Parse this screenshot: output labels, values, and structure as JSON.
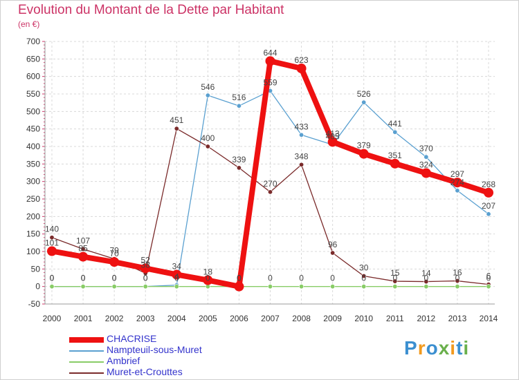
{
  "header": {
    "title": "Evolution du Montant de la Dette par Habitant",
    "subtitle": "(en €)"
  },
  "logo": {
    "text": "Proxiti",
    "letter_colors": [
      "#3b8fd0",
      "#f29a1f",
      "#3b8fd0",
      "#6ab04c",
      "#f29a1f",
      "#3b8fd0",
      "#6ab04c"
    ]
  },
  "chart_data": {
    "type": "line",
    "title": "Evolution du Montant de la Dette par Habitant",
    "subtitle": "(en €)",
    "x": [
      "2000",
      "2001",
      "2002",
      "2003",
      "2004",
      "2005",
      "2006",
      "2007",
      "2008",
      "2009",
      "2010",
      "2011",
      "2012",
      "2013",
      "2014"
    ],
    "ylim": [
      -50,
      700
    ],
    "yticks": [
      -50,
      0,
      50,
      100,
      150,
      200,
      250,
      300,
      350,
      400,
      450,
      500,
      550,
      600,
      650,
      700
    ],
    "grid": true,
    "legend": "bottom-left",
    "series": [
      {
        "name": "CHACRISE",
        "color": "#ee1111",
        "style": "thick",
        "values": [
          101,
          85,
          70,
          52,
          34,
          18,
          0,
          644,
          623,
          413,
          379,
          351,
          324,
          297,
          268
        ],
        "labels": [
          "101",
          "85",
          "70",
          "52",
          "34",
          "18",
          "0",
          "644",
          "623",
          "413",
          "379",
          "351",
          "324",
          "297",
          "268"
        ]
      },
      {
        "name": "Nampteuil-sous-Muret",
        "color": "#5aa0d0",
        "style": "thin",
        "values": [
          0,
          0,
          0,
          0,
          4,
          546,
          516,
          559,
          433,
          405,
          526,
          441,
          370,
          274,
          207
        ],
        "labels": [
          "0",
          "0",
          "0",
          "0",
          "4",
          "546",
          "516",
          "559",
          "433",
          "405",
          "526",
          "441",
          "370",
          "274",
          "207"
        ]
      },
      {
        "name": "Ambrief",
        "color": "#88cc66",
        "style": "thin",
        "values": [
          0,
          0,
          0,
          0,
          0,
          0,
          0,
          0,
          0,
          0,
          0,
          0,
          0,
          0,
          0
        ],
        "labels": [
          "0",
          "0",
          "0",
          "0",
          "0",
          "0",
          "0",
          "0",
          "0",
          "0",
          "0",
          "0",
          "0",
          "0",
          "0"
        ]
      },
      {
        "name": "Muret-et-Crouttes",
        "color": "#7a2a2a",
        "style": "thin",
        "values": [
          140,
          107,
          79,
          38,
          451,
          400,
          339,
          270,
          348,
          96,
          30,
          15,
          14,
          16,
          6
        ],
        "labels": [
          "140",
          "107",
          "79",
          "38",
          "451",
          "400",
          "339",
          "270",
          "348",
          "96",
          "30",
          "15",
          "14",
          "16",
          "6"
        ]
      }
    ]
  }
}
